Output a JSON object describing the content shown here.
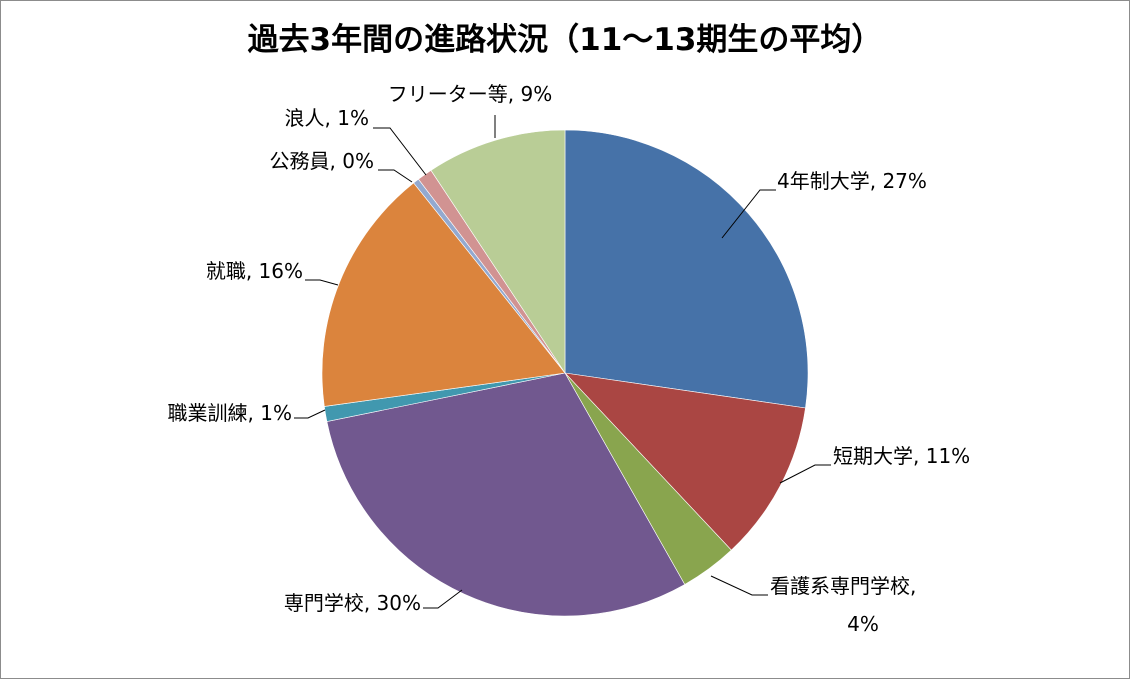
{
  "chart_data": {
    "type": "pie",
    "title": "過去3年間の進路状況（11～13期生の平均）",
    "categories": [
      "4年制大学",
      "短期大学",
      "看護系専門学校",
      "専門学校",
      "職業訓練",
      "就職",
      "公務員",
      "浪人",
      "フリーター等"
    ],
    "values": [
      27,
      11,
      4,
      30,
      1,
      16,
      0,
      1,
      9
    ],
    "labels": [
      {
        "name": "4年制大学",
        "pct": "27%"
      },
      {
        "name": "短期大学",
        "pct": "11%"
      },
      {
        "name": "看護系専門学校",
        "pct": "4%"
      },
      {
        "name": "専門学校",
        "pct": "30%"
      },
      {
        "name": "職業訓練",
        "pct": "1%"
      },
      {
        "name": "就職",
        "pct": "16%"
      },
      {
        "name": "公務員",
        "pct": "0%"
      },
      {
        "name": "浪人",
        "pct": "1%"
      },
      {
        "name": "フリーター等",
        "pct": "9%"
      }
    ],
    "colors": [
      "#4672A8",
      "#AA4643",
      "#89A54E",
      "#71588F",
      "#4198AF",
      "#DB843D",
      "#93A9CF",
      "#D19392",
      "#B9CD96"
    ],
    "start_angle": "12 o'clock",
    "direction": "clockwise"
  }
}
